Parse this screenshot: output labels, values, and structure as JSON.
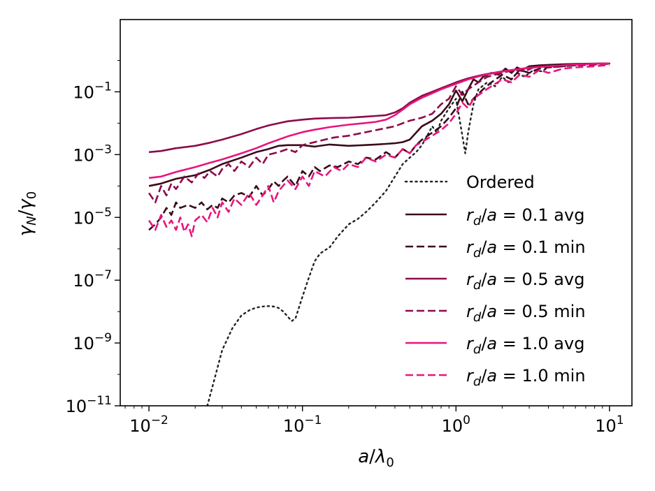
{
  "chart_data": {
    "type": "line",
    "title": "",
    "xlabel": "a/λ0",
    "ylabel": "γN/γ0",
    "xscale": "log",
    "yscale": "log",
    "xlim": [
      0.0065,
      14
    ],
    "ylim": [
      1e-11,
      20
    ],
    "grid": false,
    "legend_position": "center-right",
    "x_ticks": [
      {
        "base": "10",
        "exp": "−2",
        "value": 0.01
      },
      {
        "base": "10",
        "exp": "−1",
        "value": 0.1
      },
      {
        "base": "10",
        "exp": "0",
        "value": 1
      },
      {
        "base": "10",
        "exp": "1",
        "value": 10
      }
    ],
    "y_ticks": [
      {
        "base": "10",
        "exp": "−1",
        "value": 0.1
      },
      {
        "base": "10",
        "exp": "−3",
        "value": 0.001
      },
      {
        "base": "10",
        "exp": "−5",
        "value": 1e-05
      },
      {
        "base": "10",
        "exp": "−7",
        "value": 1e-07
      },
      {
        "base": "10",
        "exp": "−9",
        "value": 1e-09
      },
      {
        "base": "10",
        "exp": "−11",
        "value": 1e-11
      }
    ],
    "series": [
      {
        "name": "Ordered",
        "legend_label": "Ordered",
        "color": "#222222",
        "dash": "dotted",
        "x": [
          0.024,
          0.03,
          0.035,
          0.04,
          0.045,
          0.05,
          0.055,
          0.06,
          0.065,
          0.07,
          0.075,
          0.08,
          0.085,
          0.09,
          0.1,
          0.11,
          0.12,
          0.13,
          0.14,
          0.15,
          0.17,
          0.2,
          0.23,
          0.26,
          0.3,
          0.35,
          0.4,
          0.45,
          0.5,
          0.55,
          0.6,
          0.65,
          0.7,
          0.75,
          0.8,
          0.9,
          1.0,
          1.05,
          1.1,
          1.15,
          1.2,
          1.25,
          1.3,
          1.4,
          1.6,
          1.8,
          2.0,
          2.2,
          2.5,
          2.8,
          3.2,
          3.6,
          4,
          5,
          6,
          7,
          8,
          9,
          10
        ],
        "y": [
          1e-11,
          6e-10,
          3e-09,
          7.5e-09,
          1.1e-08,
          1.35e-08,
          1.45e-08,
          1.5e-08,
          1.45e-08,
          1.3e-08,
          1e-08,
          7e-09,
          5e-09,
          6e-09,
          3e-08,
          1.2e-07,
          4e-07,
          7e-07,
          9e-07,
          1.1e-06,
          2.5e-06,
          6e-06,
          9e-06,
          1.5e-05,
          3e-05,
          7e-05,
          0.0002,
          0.0005,
          0.0008,
          0.0012,
          0.002,
          0.004,
          0.008,
          0.005,
          0.012,
          0.03,
          0.06,
          0.015,
          0.004,
          0.0011,
          0.005,
          0.015,
          0.04,
          0.12,
          0.2,
          0.15,
          0.3,
          0.2,
          0.4,
          0.3,
          0.5,
          0.45,
          0.6,
          0.65,
          0.7,
          0.75,
          0.78,
          0.79,
          0.8
        ]
      },
      {
        "name": "rd/a = 0.1 avg",
        "legend_label": "r_d/a = 0.1 avg",
        "color": "#3b0a19",
        "dash": "solid",
        "x": [
          0.01,
          0.012,
          0.015,
          0.02,
          0.025,
          0.03,
          0.04,
          0.05,
          0.06,
          0.07,
          0.08,
          0.1,
          0.12,
          0.15,
          0.2,
          0.25,
          0.3,
          0.35,
          0.4,
          0.45,
          0.5,
          0.55,
          0.6,
          0.7,
          0.8,
          0.9,
          1.0,
          1.1,
          1.2,
          1.3,
          1.4,
          1.5,
          1.7,
          1.9,
          2.1,
          2.3,
          2.5,
          2.7,
          3.0,
          3.5,
          4,
          5,
          6,
          7,
          8,
          10
        ],
        "y": [
          0.0001,
          0.00012,
          0.00017,
          0.00022,
          0.00033,
          0.0005,
          0.0008,
          0.0012,
          0.0015,
          0.0019,
          0.002,
          0.002,
          0.0018,
          0.0021,
          0.0019,
          0.002,
          0.0021,
          0.0022,
          0.0023,
          0.0025,
          0.003,
          0.005,
          0.008,
          0.012,
          0.02,
          0.04,
          0.11,
          0.05,
          0.12,
          0.25,
          0.2,
          0.3,
          0.4,
          0.35,
          0.55,
          0.4,
          0.6,
          0.5,
          0.65,
          0.7,
          0.72,
          0.75,
          0.77,
          0.78,
          0.79,
          0.8
        ]
      },
      {
        "name": "rd/a = 0.1 min",
        "legend_label": "r_d/a = 0.1 min",
        "color": "#3b0a19",
        "dash": "dashed",
        "x": [
          0.01,
          0.011,
          0.012,
          0.013,
          0.014,
          0.015,
          0.016,
          0.018,
          0.02,
          0.022,
          0.024,
          0.026,
          0.028,
          0.03,
          0.033,
          0.036,
          0.04,
          0.045,
          0.05,
          0.055,
          0.06,
          0.065,
          0.07,
          0.075,
          0.08,
          0.09,
          0.1,
          0.11,
          0.12,
          0.13,
          0.15,
          0.17,
          0.2,
          0.23,
          0.26,
          0.3,
          0.35,
          0.4,
          0.45,
          0.5,
          0.55,
          0.6,
          0.7,
          0.8,
          0.9,
          1.0,
          1.1,
          1.2,
          1.3,
          1.5,
          1.7,
          2.0,
          2.3,
          2.6,
          3.0,
          3.5,
          4,
          5,
          6,
          8,
          10
        ],
        "y": [
          4e-06,
          6e-06,
          1e-05,
          2e-05,
          1.2e-05,
          3e-05,
          2e-05,
          2.5e-05,
          2e-05,
          3e-05,
          1.8e-05,
          2.5e-05,
          2e-05,
          4e-05,
          3e-05,
          5e-05,
          6e-05,
          4.5e-05,
          0.0001,
          5e-05,
          8e-05,
          0.00014,
          0.0001,
          0.00015,
          0.0002,
          0.0001,
          0.0003,
          0.0002,
          0.0004,
          0.0003,
          0.00045,
          0.0004,
          0.0006,
          0.0005,
          0.0008,
          0.0007,
          0.0012,
          0.0008,
          0.0015,
          0.0011,
          0.002,
          0.003,
          0.005,
          0.008,
          0.015,
          0.03,
          0.1,
          0.04,
          0.06,
          0.12,
          0.2,
          0.35,
          0.25,
          0.5,
          0.4,
          0.55,
          0.6,
          0.65,
          0.7,
          0.74,
          0.78
        ]
      },
      {
        "name": "rd/a = 0.5 avg",
        "legend_label": "r_d/a = 0.5 avg",
        "color": "#8c0b4b",
        "dash": "solid",
        "x": [
          0.01,
          0.012,
          0.015,
          0.02,
          0.025,
          0.03,
          0.04,
          0.05,
          0.06,
          0.07,
          0.08,
          0.1,
          0.12,
          0.15,
          0.2,
          0.25,
          0.3,
          0.35,
          0.4,
          0.45,
          0.5,
          0.6,
          0.7,
          0.8,
          1.0,
          1.2,
          1.5,
          2,
          2.5,
          3,
          4,
          5,
          6,
          8,
          10
        ],
        "y": [
          0.0012,
          0.0013,
          0.0016,
          0.0019,
          0.0024,
          0.003,
          0.0045,
          0.0065,
          0.0085,
          0.01,
          0.0115,
          0.013,
          0.014,
          0.0145,
          0.015,
          0.016,
          0.017,
          0.018,
          0.022,
          0.03,
          0.045,
          0.075,
          0.1,
          0.13,
          0.2,
          0.27,
          0.35,
          0.45,
          0.52,
          0.58,
          0.65,
          0.7,
          0.74,
          0.78,
          0.8
        ]
      },
      {
        "name": "rd/a = 0.5 min",
        "legend_label": "r_d/a = 0.5 min",
        "color": "#8c0b4b",
        "dash": "dashed",
        "x": [
          0.01,
          0.011,
          0.012,
          0.013,
          0.014,
          0.015,
          0.017,
          0.019,
          0.021,
          0.023,
          0.025,
          0.028,
          0.03,
          0.033,
          0.036,
          0.04,
          0.045,
          0.05,
          0.055,
          0.06,
          0.07,
          0.08,
          0.09,
          0.1,
          0.12,
          0.14,
          0.16,
          0.2,
          0.25,
          0.3,
          0.35,
          0.4,
          0.45,
          0.5,
          0.6,
          0.7,
          0.8,
          0.9,
          1.0,
          1.1,
          1.2,
          1.4,
          1.6,
          2,
          2.4,
          2.8,
          3.2,
          4,
          5,
          6,
          8,
          10
        ],
        "y": [
          6e-05,
          3e-05,
          0.0001,
          5e-05,
          0.00012,
          8e-05,
          0.0002,
          0.00013,
          0.00025,
          0.00018,
          0.0003,
          0.0002,
          0.00035,
          0.0005,
          0.0003,
          0.0006,
          0.0004,
          0.0008,
          0.0005,
          0.001,
          0.0012,
          0.0015,
          0.0012,
          0.002,
          0.0025,
          0.003,
          0.0035,
          0.004,
          0.005,
          0.006,
          0.007,
          0.008,
          0.01,
          0.012,
          0.015,
          0.02,
          0.04,
          0.06,
          0.15,
          0.08,
          0.12,
          0.2,
          0.3,
          0.4,
          0.5,
          0.45,
          0.6,
          0.65,
          0.7,
          0.74,
          0.78,
          0.8
        ]
      },
      {
        "name": "rd/a = 1.0 avg",
        "legend_label": "r_d/a = 1.0 avg",
        "color": "#e8157e",
        "dash": "solid",
        "x": [
          0.01,
          0.012,
          0.015,
          0.02,
          0.025,
          0.03,
          0.04,
          0.05,
          0.06,
          0.07,
          0.08,
          0.1,
          0.12,
          0.15,
          0.2,
          0.25,
          0.3,
          0.35,
          0.4,
          0.45,
          0.5,
          0.6,
          0.7,
          0.8,
          1.0,
          1.2,
          1.5,
          2,
          2.5,
          3,
          4,
          5,
          6,
          8,
          10
        ],
        "y": [
          0.00018,
          0.0002,
          0.00028,
          0.0004,
          0.00055,
          0.0007,
          0.0011,
          0.0016,
          0.0023,
          0.003,
          0.0038,
          0.0052,
          0.0062,
          0.0075,
          0.009,
          0.01,
          0.011,
          0.013,
          0.018,
          0.027,
          0.04,
          0.065,
          0.09,
          0.12,
          0.18,
          0.25,
          0.34,
          0.44,
          0.52,
          0.58,
          0.65,
          0.7,
          0.74,
          0.78,
          0.8
        ]
      },
      {
        "name": "rd/a = 1.0 min",
        "legend_label": "r_d/a = 1.0 min",
        "color": "#e8157e",
        "dash": "dashed",
        "x": [
          0.01,
          0.011,
          0.012,
          0.013,
          0.014,
          0.015,
          0.016,
          0.017,
          0.018,
          0.019,
          0.02,
          0.022,
          0.024,
          0.026,
          0.028,
          0.03,
          0.033,
          0.036,
          0.04,
          0.045,
          0.05,
          0.055,
          0.06,
          0.065,
          0.07,
          0.08,
          0.09,
          0.1,
          0.11,
          0.12,
          0.14,
          0.16,
          0.18,
          0.2,
          0.23,
          0.26,
          0.3,
          0.35,
          0.4,
          0.45,
          0.5,
          0.55,
          0.6,
          0.7,
          0.8,
          0.9,
          1.0,
          1.1,
          1.2,
          1.3,
          1.5,
          1.7,
          2,
          2.3,
          2.6,
          3,
          3.5,
          4,
          5,
          6,
          8,
          10
        ],
        "y": [
          8e-06,
          4e-06,
          1.2e-05,
          5e-06,
          8e-06,
          4e-06,
          1e-05,
          3.5e-06,
          6e-06,
          2.5e-06,
          8e-06,
          1.2e-05,
          7e-06,
          2e-05,
          1e-05,
          3e-05,
          1.5e-05,
          4e-05,
          2.5e-05,
          6e-05,
          2.5e-05,
          5e-05,
          0.0001,
          3e-05,
          7e-05,
          0.00015,
          8e-05,
          0.0002,
          0.0001,
          0.0003,
          0.0002,
          0.0004,
          0.0003,
          0.0005,
          0.0004,
          0.0008,
          0.0006,
          0.001,
          0.0008,
          0.0015,
          0.0011,
          0.002,
          0.0025,
          0.004,
          0.006,
          0.01,
          0.02,
          0.045,
          0.03,
          0.06,
          0.1,
          0.15,
          0.25,
          0.2,
          0.35,
          0.3,
          0.5,
          0.4,
          0.55,
          0.6,
          0.65,
          0.72
        ]
      }
    ]
  }
}
